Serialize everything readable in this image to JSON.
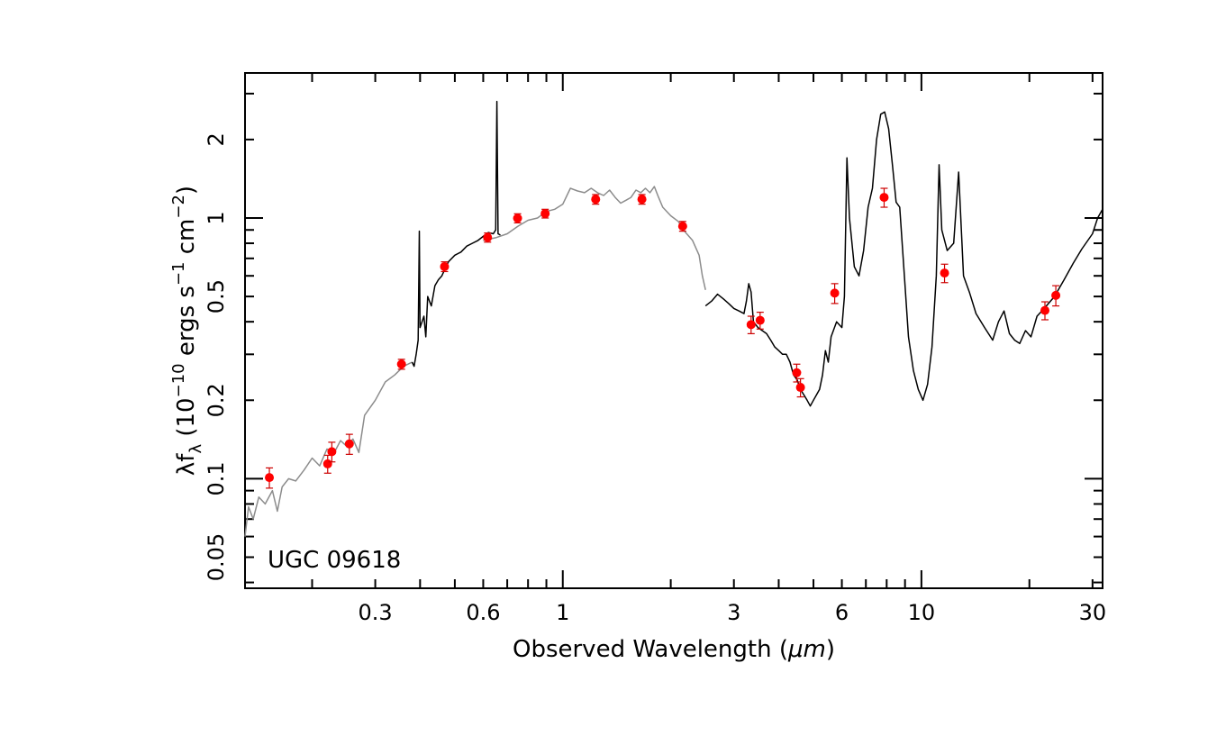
{
  "chart_data": {
    "type": "scatter",
    "xlabel_main": "Observed Wavelength (",
    "xlabel_unit": "μm",
    "xlabel_close": ")",
    "ylabel_lead": "λf",
    "ylabel_sub": "λ",
    "ylabel_open": " (10",
    "ylabel_exp1": "−10",
    "ylabel_mid": " ergs s",
    "ylabel_exp2": "−1",
    "ylabel_cm": " cm",
    "ylabel_exp3": "−2",
    "ylabel_close": ")",
    "x_scale": "log",
    "y_scale": "log",
    "xlim": [
      0.13,
      32
    ],
    "ylim": [
      0.038,
      3.6
    ],
    "x_ticks": [
      {
        "value": 0.3,
        "label": "0.3"
      },
      {
        "value": 0.6,
        "label": "0.6"
      },
      {
        "value": 1,
        "label": "1"
      },
      {
        "value": 3,
        "label": "3"
      },
      {
        "value": 6,
        "label": "6"
      },
      {
        "value": 10,
        "label": "10"
      },
      {
        "value": 30,
        "label": "30"
      }
    ],
    "y_ticks": [
      {
        "value": 0.05,
        "label": "0.05"
      },
      {
        "value": 0.1,
        "label": "0.1"
      },
      {
        "value": 0.2,
        "label": "0.2"
      },
      {
        "value": 0.5,
        "label": "0.5"
      },
      {
        "value": 1,
        "label": "1"
      },
      {
        "value": 2,
        "label": "2"
      }
    ],
    "annotation": "UGC 09618",
    "colors": {
      "points": "#ff0000",
      "errorbars": "#cc0000",
      "model_gray": "#8c8c8c",
      "model_black": "#000000"
    },
    "points": [
      {
        "x": 0.152,
        "y": 0.101,
        "yerr": 0.009
      },
      {
        "x": 0.221,
        "y": 0.114,
        "yerr": 0.009
      },
      {
        "x": 0.227,
        "y": 0.127,
        "yerr": 0.011
      },
      {
        "x": 0.254,
        "y": 0.136,
        "yerr": 0.012
      },
      {
        "x": 0.355,
        "y": 0.275,
        "yerr": 0.012
      },
      {
        "x": 0.468,
        "y": 0.651,
        "yerr": 0.028
      },
      {
        "x": 0.617,
        "y": 0.842,
        "yerr": 0.034
      },
      {
        "x": 0.748,
        "y": 0.998,
        "yerr": 0.04
      },
      {
        "x": 0.893,
        "y": 1.04,
        "yerr": 0.04
      },
      {
        "x": 1.235,
        "y": 1.18,
        "yerr": 0.05
      },
      {
        "x": 1.662,
        "y": 1.18,
        "yerr": 0.05
      },
      {
        "x": 2.159,
        "y": 0.93,
        "yerr": 0.04
      },
      {
        "x": 3.35,
        "y": 0.39,
        "yerr": 0.03
      },
      {
        "x": 3.55,
        "y": 0.405,
        "yerr": 0.03
      },
      {
        "x": 4.49,
        "y": 0.255,
        "yerr": 0.02
      },
      {
        "x": 4.6,
        "y": 0.224,
        "yerr": 0.018
      },
      {
        "x": 5.73,
        "y": 0.515,
        "yerr": 0.045
      },
      {
        "x": 7.87,
        "y": 1.2,
        "yerr": 0.1
      },
      {
        "x": 11.6,
        "y": 0.615,
        "yerr": 0.05
      },
      {
        "x": 22.1,
        "y": 0.442,
        "yerr": 0.035
      },
      {
        "x": 23.7,
        "y": 0.505,
        "yerr": 0.045
      }
    ],
    "model_gray": [
      [
        0.13,
        0.06
      ],
      [
        0.133,
        0.078
      ],
      [
        0.137,
        0.07
      ],
      [
        0.142,
        0.085
      ],
      [
        0.148,
        0.08
      ],
      [
        0.155,
        0.09
      ],
      [
        0.16,
        0.075
      ],
      [
        0.165,
        0.093
      ],
      [
        0.172,
        0.1
      ],
      [
        0.18,
        0.098
      ],
      [
        0.19,
        0.108
      ],
      [
        0.2,
        0.12
      ],
      [
        0.21,
        0.112
      ],
      [
        0.22,
        0.13
      ],
      [
        0.23,
        0.125
      ],
      [
        0.24,
        0.14
      ],
      [
        0.25,
        0.133
      ],
      [
        0.26,
        0.142
      ],
      [
        0.27,
        0.126
      ],
      [
        0.28,
        0.175
      ],
      [
        0.3,
        0.2
      ],
      [
        0.32,
        0.235
      ],
      [
        0.34,
        0.25
      ],
      [
        0.36,
        0.27
      ],
      [
        0.38,
        0.28
      ],
      [
        0.6,
        0.82
      ],
      [
        0.65,
        0.84
      ],
      [
        0.7,
        0.87
      ],
      [
        0.75,
        0.93
      ],
      [
        0.8,
        0.98
      ],
      [
        0.85,
        1.0
      ],
      [
        0.9,
        1.06
      ],
      [
        0.95,
        1.08
      ],
      [
        1.0,
        1.13
      ],
      [
        1.05,
        1.3
      ],
      [
        1.1,
        1.27
      ],
      [
        1.15,
        1.25
      ],
      [
        1.2,
        1.3
      ],
      [
        1.25,
        1.25
      ],
      [
        1.3,
        1.22
      ],
      [
        1.35,
        1.28
      ],
      [
        1.4,
        1.2
      ],
      [
        1.45,
        1.14
      ],
      [
        1.5,
        1.17
      ],
      [
        1.55,
        1.2
      ],
      [
        1.6,
        1.28
      ],
      [
        1.65,
        1.25
      ],
      [
        1.7,
        1.3
      ],
      [
        1.75,
        1.25
      ],
      [
        1.8,
        1.32
      ],
      [
        1.85,
        1.2
      ],
      [
        1.9,
        1.1
      ],
      [
        2.0,
        1.02
      ],
      [
        2.1,
        0.97
      ],
      [
        2.2,
        0.88
      ],
      [
        2.3,
        0.82
      ],
      [
        2.4,
        0.72
      ],
      [
        2.45,
        0.6
      ],
      [
        2.5,
        0.53
      ]
    ],
    "model_black": [
      [
        0.38,
        0.28
      ],
      [
        0.385,
        0.27
      ],
      [
        0.39,
        0.3
      ],
      [
        0.395,
        0.34
      ],
      [
        0.398,
        0.89
      ],
      [
        0.4,
        0.38
      ],
      [
        0.41,
        0.42
      ],
      [
        0.415,
        0.35
      ],
      [
        0.42,
        0.5
      ],
      [
        0.43,
        0.46
      ],
      [
        0.44,
        0.55
      ],
      [
        0.45,
        0.58
      ],
      [
        0.46,
        0.6
      ],
      [
        0.47,
        0.64
      ],
      [
        0.48,
        0.68
      ],
      [
        0.5,
        0.72
      ],
      [
        0.52,
        0.74
      ],
      [
        0.54,
        0.78
      ],
      [
        0.56,
        0.8
      ],
      [
        0.58,
        0.82
      ],
      [
        0.6,
        0.85
      ],
      [
        0.62,
        0.88
      ],
      [
        0.64,
        0.87
      ],
      [
        0.65,
        0.9
      ],
      [
        0.655,
        2.8
      ],
      [
        0.66,
        0.87
      ],
      [
        0.67,
        0.86
      ],
      [
        2.5,
        0.46
      ],
      [
        2.6,
        0.48
      ],
      [
        2.7,
        0.51
      ],
      [
        2.8,
        0.49
      ],
      [
        2.9,
        0.47
      ],
      [
        3.0,
        0.45
      ],
      [
        3.1,
        0.44
      ],
      [
        3.2,
        0.43
      ],
      [
        3.25,
        0.48
      ],
      [
        3.3,
        0.56
      ],
      [
        3.35,
        0.52
      ],
      [
        3.4,
        0.4
      ],
      [
        3.5,
        0.38
      ],
      [
        3.6,
        0.37
      ],
      [
        3.7,
        0.36
      ],
      [
        3.8,
        0.34
      ],
      [
        3.9,
        0.32
      ],
      [
        4.0,
        0.31
      ],
      [
        4.1,
        0.3
      ],
      [
        4.2,
        0.3
      ],
      [
        4.3,
        0.28
      ],
      [
        4.4,
        0.25
      ],
      [
        4.5,
        0.24
      ],
      [
        4.6,
        0.22
      ],
      [
        4.7,
        0.21
      ],
      [
        4.8,
        0.2
      ],
      [
        4.9,
        0.19
      ],
      [
        5.0,
        0.2
      ],
      [
        5.1,
        0.21
      ],
      [
        5.2,
        0.22
      ],
      [
        5.3,
        0.25
      ],
      [
        5.4,
        0.31
      ],
      [
        5.5,
        0.28
      ],
      [
        5.6,
        0.35
      ],
      [
        5.8,
        0.4
      ],
      [
        6.0,
        0.38
      ],
      [
        6.1,
        0.5
      ],
      [
        6.2,
        1.7
      ],
      [
        6.3,
        1.0
      ],
      [
        6.5,
        0.65
      ],
      [
        6.7,
        0.6
      ],
      [
        6.9,
        0.75
      ],
      [
        7.1,
        1.1
      ],
      [
        7.3,
        1.3
      ],
      [
        7.5,
        2.0
      ],
      [
        7.7,
        2.5
      ],
      [
        7.9,
        2.55
      ],
      [
        8.1,
        2.2
      ],
      [
        8.3,
        1.6
      ],
      [
        8.5,
        1.15
      ],
      [
        8.7,
        1.1
      ],
      [
        9.0,
        0.55
      ],
      [
        9.2,
        0.35
      ],
      [
        9.5,
        0.26
      ],
      [
        9.8,
        0.22
      ],
      [
        10.1,
        0.2
      ],
      [
        10.4,
        0.23
      ],
      [
        10.7,
        0.32
      ],
      [
        11.0,
        0.6
      ],
      [
        11.2,
        1.6
      ],
      [
        11.4,
        0.9
      ],
      [
        11.8,
        0.75
      ],
      [
        12.3,
        0.8
      ],
      [
        12.7,
        1.5
      ],
      [
        13.1,
        0.6
      ],
      [
        13.6,
        0.52
      ],
      [
        14.2,
        0.43
      ],
      [
        15.0,
        0.38
      ],
      [
        15.8,
        0.34
      ],
      [
        16.4,
        0.4
      ],
      [
        17.0,
        0.44
      ],
      [
        17.6,
        0.36
      ],
      [
        18.2,
        0.34
      ],
      [
        18.8,
        0.33
      ],
      [
        19.5,
        0.37
      ],
      [
        20.2,
        0.35
      ],
      [
        21.0,
        0.42
      ],
      [
        22.0,
        0.45
      ],
      [
        23.5,
        0.5
      ],
      [
        25.0,
        0.58
      ],
      [
        26.5,
        0.67
      ],
      [
        28.0,
        0.76
      ],
      [
        30.0,
        0.87
      ],
      [
        31.0,
        1.0
      ],
      [
        32.0,
        1.08
      ]
    ]
  }
}
